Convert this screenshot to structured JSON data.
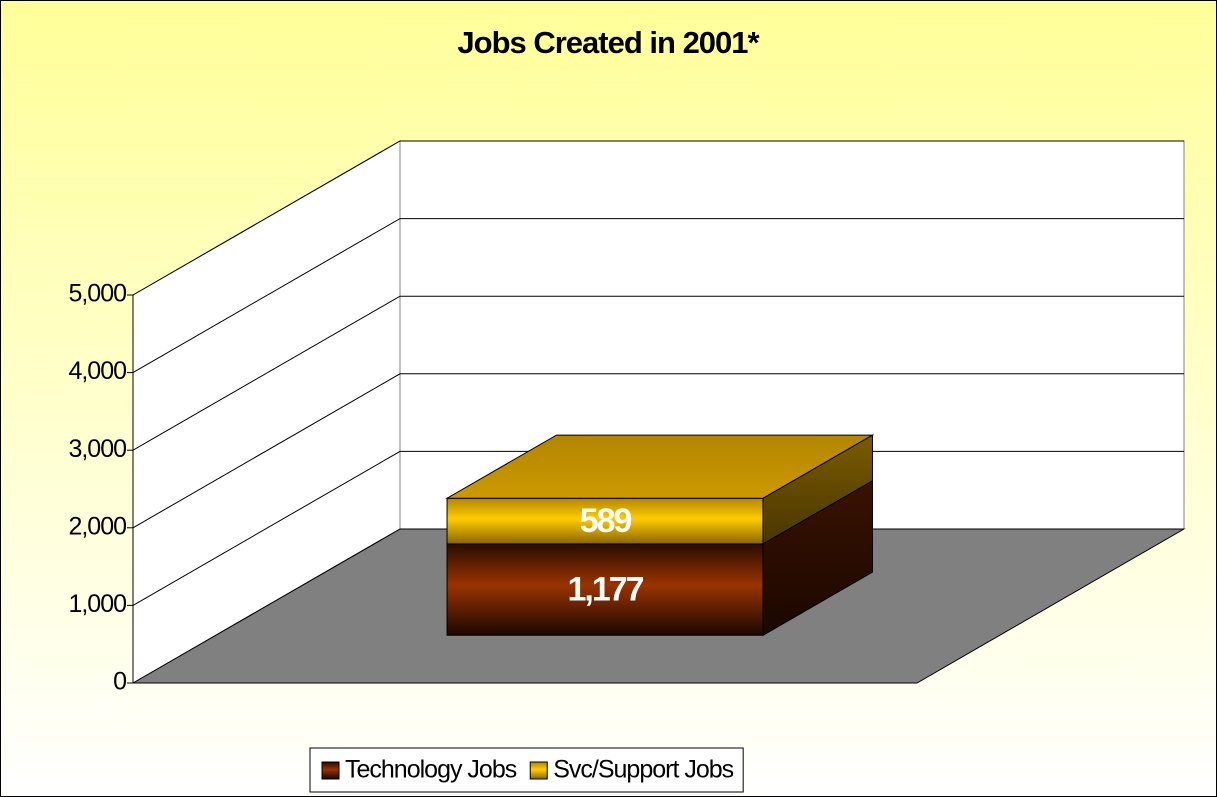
{
  "chart_data": {
    "type": "bar3d_stacked",
    "title": "Jobs Created in 2001*",
    "categories": [
      null
    ],
    "series": [
      {
        "name": "Technology Jobs",
        "color": "#993300",
        "values": [
          1177
        ],
        "value_labels": [
          "1,177"
        ]
      },
      {
        "name": "Svc/Support Jobs",
        "color": "#ffcc00",
        "values": [
          589
        ],
        "value_labels": [
          "589"
        ]
      }
    ],
    "ylim": [
      0,
      5000
    ],
    "yticks": [
      0,
      {
        "value": 1000,
        "label": "1,000"
      },
      {
        "value": 2000,
        "label": "2,000"
      },
      {
        "value": 3000,
        "label": "3,000"
      },
      {
        "value": 4000,
        "label": "4,000"
      },
      {
        "value": 5000,
        "label": "5,000"
      }
    ],
    "grid": true,
    "legend": "bottom"
  }
}
